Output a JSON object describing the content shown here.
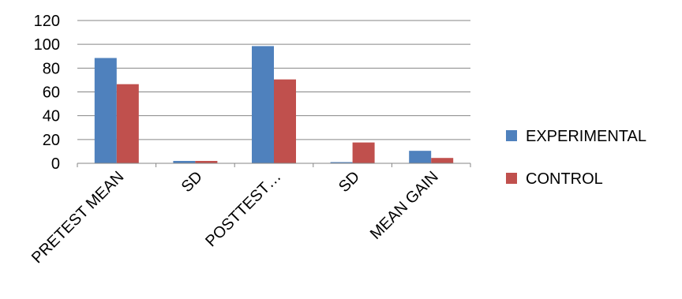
{
  "chart_data": {
    "type": "bar",
    "categories": [
      "PRETEST MEAN",
      "SD",
      "POSTTEST…",
      "SD",
      "MEAN GAIN"
    ],
    "series": [
      {
        "name": "EXPERIMENTAL",
        "color": "#4F81BD",
        "values": [
          88.5,
          2,
          98.5,
          1,
          10.5
        ]
      },
      {
        "name": "CONTROL",
        "color": "#C0504D",
        "values": [
          66.5,
          2,
          70.5,
          17.5,
          4.5
        ]
      }
    ],
    "yticks": [
      "0",
      "20",
      "40",
      "60",
      "80",
      "100",
      "120"
    ],
    "ylim": [
      0,
      120
    ],
    "grid": true,
    "legend": "right"
  }
}
